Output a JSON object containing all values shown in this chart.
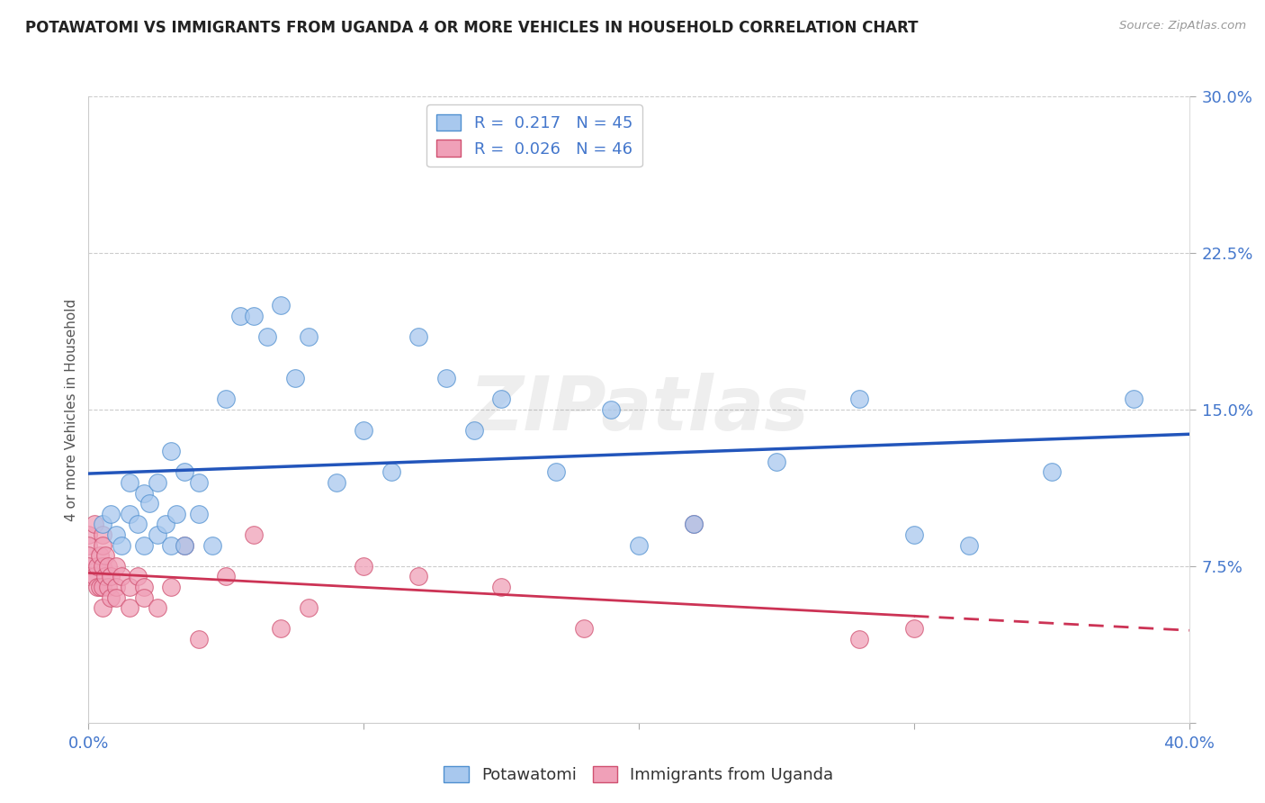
{
  "title": "POTAWATOMI VS IMMIGRANTS FROM UGANDA 4 OR MORE VEHICLES IN HOUSEHOLD CORRELATION CHART",
  "source": "Source: ZipAtlas.com",
  "ylabel_label": "4 or more Vehicles in Household",
  "xmin": 0.0,
  "xmax": 0.4,
  "ymin": 0.0,
  "ymax": 0.3,
  "xticks": [
    0.0,
    0.1,
    0.2,
    0.3,
    0.4
  ],
  "xtick_labels_show": [
    "0.0%",
    "",
    "",
    "",
    "40.0%"
  ],
  "yticks": [
    0.0,
    0.075,
    0.15,
    0.225,
    0.3
  ],
  "ytick_labels": [
    "",
    "7.5%",
    "15.0%",
    "22.5%",
    "30.0%"
  ],
  "legend1_R": "0.217",
  "legend1_N": "45",
  "legend2_R": "0.026",
  "legend2_N": "46",
  "blue_scatter_color": "#A8C8EE",
  "blue_edge_color": "#5090D0",
  "pink_scatter_color": "#F0A0B8",
  "pink_edge_color": "#D05070",
  "blue_line_color": "#2255BB",
  "pink_line_color": "#CC3355",
  "grid_color": "#CCCCCC",
  "watermark": "ZIPatlas",
  "potawatomi_x": [
    0.005,
    0.008,
    0.01,
    0.012,
    0.015,
    0.015,
    0.018,
    0.02,
    0.02,
    0.022,
    0.025,
    0.025,
    0.028,
    0.03,
    0.03,
    0.032,
    0.035,
    0.035,
    0.04,
    0.04,
    0.045,
    0.05,
    0.055,
    0.06,
    0.065,
    0.07,
    0.075,
    0.08,
    0.09,
    0.1,
    0.11,
    0.12,
    0.13,
    0.14,
    0.15,
    0.17,
    0.19,
    0.2,
    0.22,
    0.25,
    0.28,
    0.3,
    0.32,
    0.35,
    0.38
  ],
  "potawatomi_y": [
    0.095,
    0.1,
    0.09,
    0.085,
    0.1,
    0.115,
    0.095,
    0.11,
    0.085,
    0.105,
    0.115,
    0.09,
    0.095,
    0.13,
    0.085,
    0.1,
    0.12,
    0.085,
    0.115,
    0.1,
    0.085,
    0.155,
    0.195,
    0.195,
    0.185,
    0.2,
    0.165,
    0.185,
    0.115,
    0.14,
    0.12,
    0.185,
    0.165,
    0.14,
    0.155,
    0.12,
    0.15,
    0.085,
    0.095,
    0.125,
    0.155,
    0.09,
    0.085,
    0.12,
    0.155
  ],
  "uganda_x": [
    0.0,
    0.0,
    0.0,
    0.0,
    0.0,
    0.002,
    0.002,
    0.003,
    0.003,
    0.004,
    0.004,
    0.005,
    0.005,
    0.005,
    0.005,
    0.005,
    0.006,
    0.006,
    0.007,
    0.007,
    0.008,
    0.008,
    0.01,
    0.01,
    0.01,
    0.012,
    0.015,
    0.015,
    0.018,
    0.02,
    0.02,
    0.025,
    0.03,
    0.035,
    0.04,
    0.05,
    0.06,
    0.07,
    0.08,
    0.1,
    0.12,
    0.15,
    0.18,
    0.22,
    0.28,
    0.3
  ],
  "uganda_y": [
    0.09,
    0.085,
    0.08,
    0.075,
    0.07,
    0.095,
    0.07,
    0.075,
    0.065,
    0.08,
    0.065,
    0.09,
    0.085,
    0.075,
    0.065,
    0.055,
    0.08,
    0.07,
    0.075,
    0.065,
    0.07,
    0.06,
    0.075,
    0.065,
    0.06,
    0.07,
    0.065,
    0.055,
    0.07,
    0.065,
    0.06,
    0.055,
    0.065,
    0.085,
    0.04,
    0.07,
    0.09,
    0.045,
    0.055,
    0.075,
    0.07,
    0.065,
    0.045,
    0.095,
    0.04,
    0.045
  ]
}
